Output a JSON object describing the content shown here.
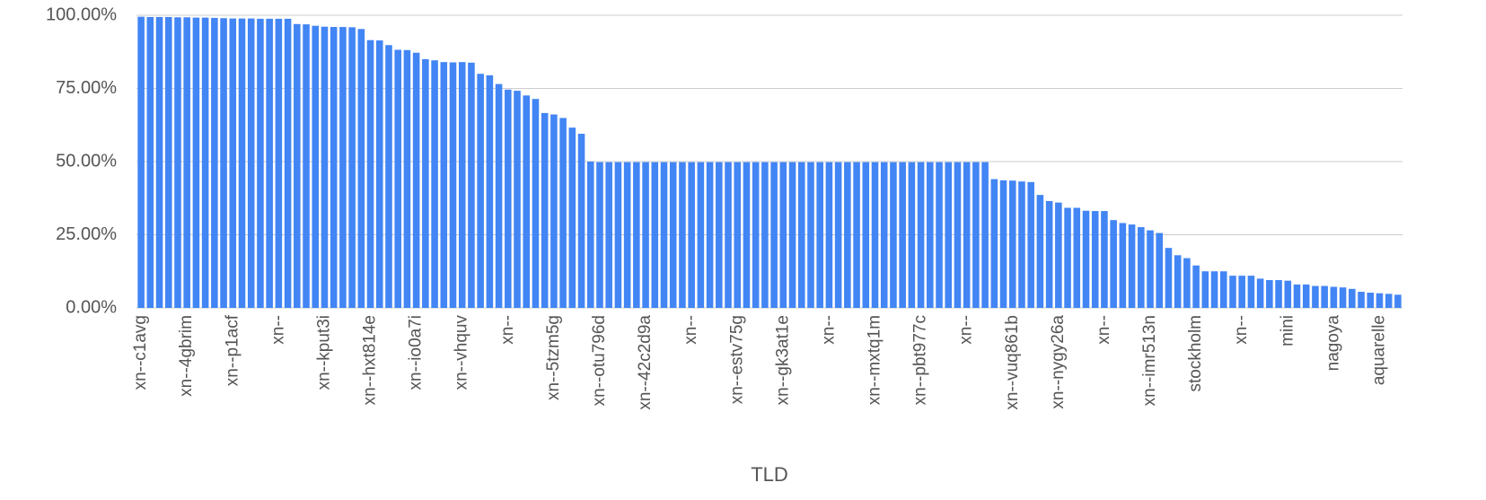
{
  "chart_data": {
    "type": "bar",
    "x_label": "TLD",
    "color": "#4285f4",
    "grid": true,
    "ylim": [
      0,
      100
    ],
    "yticks": [
      {
        "value": 0,
        "label": "0.00%"
      },
      {
        "value": 25,
        "label": "25.00%"
      },
      {
        "value": 50,
        "label": "50.00%"
      },
      {
        "value": 75,
        "label": "75.00%"
      },
      {
        "value": 100,
        "label": "100.00%"
      }
    ],
    "categories": [
      "xn--c1avg",
      null,
      null,
      null,
      null,
      "xn--4gbrim",
      null,
      null,
      null,
      null,
      "xn--p1acf",
      null,
      null,
      null,
      null,
      "xn--",
      null,
      null,
      null,
      null,
      "xn--kput3i",
      null,
      null,
      null,
      null,
      "xn--hxt814e",
      null,
      null,
      null,
      null,
      "xn--io0a7i",
      null,
      null,
      null,
      null,
      "xn--vhquv",
      null,
      null,
      null,
      null,
      "xn--",
      null,
      null,
      null,
      null,
      "xn--5tzm5g",
      null,
      null,
      null,
      null,
      "xn--otu796d",
      null,
      null,
      null,
      null,
      "xn--42c2d9a",
      null,
      null,
      null,
      null,
      "xn--",
      null,
      null,
      null,
      null,
      "xn--estv75g",
      null,
      null,
      null,
      null,
      "xn--gk3at1e",
      null,
      null,
      null,
      null,
      "xn--",
      null,
      null,
      null,
      null,
      "xn--mxtq1m",
      null,
      null,
      null,
      null,
      "xn--pbt977c",
      null,
      null,
      null,
      null,
      "xn--",
      null,
      null,
      null,
      null,
      "xn--vuq861b",
      null,
      null,
      null,
      null,
      "xn--nygy26a",
      null,
      null,
      null,
      null,
      "xn--",
      null,
      null,
      null,
      null,
      "xn--imr513n",
      null,
      null,
      null,
      null,
      "stockholm",
      null,
      null,
      null,
      null,
      "xn--",
      null,
      null,
      null,
      null,
      "mini",
      null,
      null,
      null,
      null,
      "nagoya",
      null,
      null,
      null,
      null,
      "aquarelle",
      null,
      null
    ],
    "values": [
      99.5,
      99.4,
      99.4,
      99.4,
      99.3,
      99.3,
      99.2,
      99.2,
      99.1,
      99.0,
      98.9,
      98.9,
      98.9,
      98.8,
      98.8,
      98.8,
      98.8,
      97.0,
      96.9,
      96.4,
      96.1,
      96.0,
      96.0,
      95.9,
      95.3,
      91.5,
      91.4,
      89.8,
      88.2,
      88.1,
      87.2,
      85.0,
      84.6,
      84.0,
      83.9,
      84.0,
      83.8,
      80.0,
      79.5,
      76.5,
      74.6,
      74.2,
      72.6,
      71.4,
      66.6,
      66.1,
      64.9,
      61.6,
      59.5,
      50.0,
      49.8,
      49.8,
      49.8,
      49.8,
      49.8,
      49.8,
      49.8,
      49.8,
      49.8,
      49.8,
      49.8,
      49.8,
      49.8,
      49.8,
      49.8,
      49.8,
      49.8,
      49.8,
      49.8,
      49.8,
      49.8,
      49.8,
      49.8,
      49.8,
      49.8,
      49.8,
      49.8,
      49.8,
      49.8,
      49.8,
      49.8,
      49.8,
      49.8,
      49.8,
      49.8,
      49.8,
      49.8,
      49.8,
      49.8,
      49.8,
      49.8,
      49.8,
      49.8,
      44.0,
      43.6,
      43.5,
      43.2,
      43.0,
      38.6,
      36.5,
      36.0,
      34.2,
      34.2,
      33.2,
      33.1,
      33.1,
      30.0,
      29.0,
      28.5,
      27.6,
      26.5,
      25.6,
      20.5,
      18.0,
      17.0,
      14.5,
      12.5,
      12.5,
      12.5,
      11.0,
      11.0,
      11.0,
      10.0,
      9.5,
      9.5,
      9.3,
      8.0,
      8.0,
      7.5,
      7.5,
      7.2,
      7.0,
      6.5,
      5.5,
      5.2,
      5.0,
      4.8,
      4.5
    ]
  }
}
